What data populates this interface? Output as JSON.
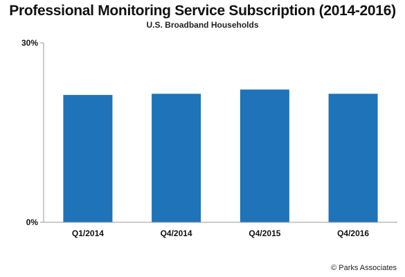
{
  "chart_data": {
    "type": "bar",
    "title": "Professional Monitoring Service Subscription (2014-2016)",
    "subtitle": "U.S. Broadband Households",
    "categories": [
      "Q1/2014",
      "Q4/2014",
      "Q4/2015",
      "Q4/2016"
    ],
    "values": [
      21.3,
      21.5,
      22.2,
      21.5
    ],
    "ylim": [
      0,
      30
    ],
    "yticks": [
      "0%",
      "30%"
    ],
    "xlabel": "",
    "ylabel": "",
    "grid": false,
    "legend": "none",
    "bar_color": "#1f73b8"
  },
  "footer": {
    "copyright": "© Parks Associates"
  }
}
